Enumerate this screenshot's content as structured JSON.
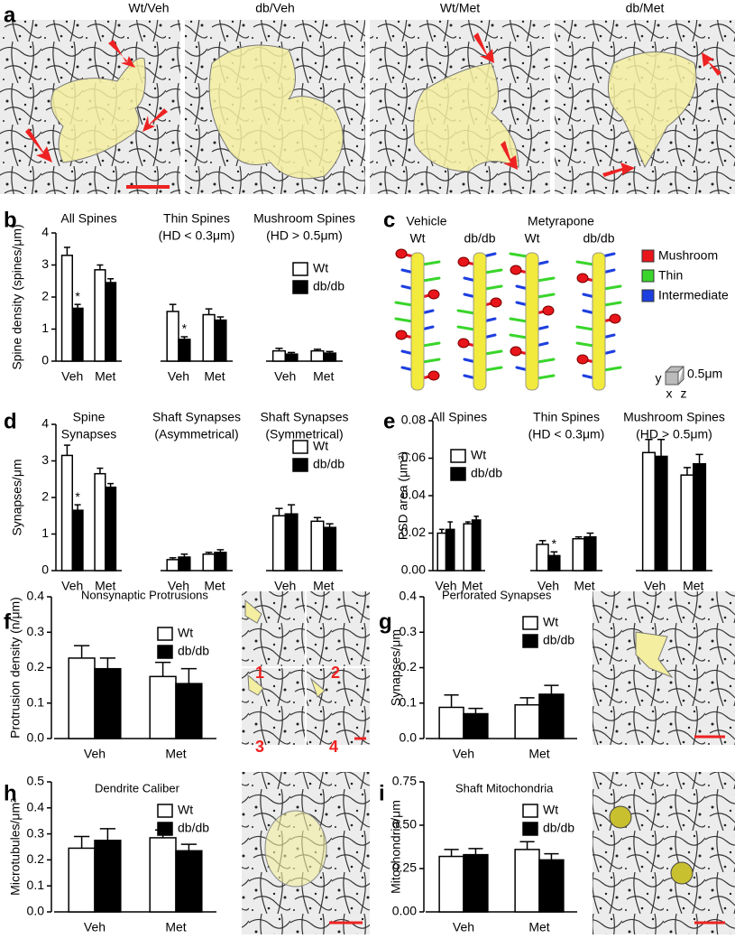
{
  "figure": {
    "panel_letters": [
      "a",
      "b",
      "c",
      "d",
      "e",
      "f",
      "g",
      "h",
      "i"
    ],
    "micrographs": [
      "Wt/Veh",
      "db/Veh",
      "Wt/Met",
      "db/Met"
    ],
    "tile_numbers": [
      "1",
      "2",
      "3",
      "4"
    ],
    "reconstruction": {
      "groups": [
        "Vehicle",
        "Metyrapone"
      ],
      "columns": [
        "Wt",
        "db/db",
        "Wt",
        "db/db"
      ],
      "legend": [
        {
          "name": "Mushroom",
          "color": "#e8151b"
        },
        {
          "name": "Thin",
          "color": "#39d52b"
        },
        {
          "name": "Intermediate",
          "color": "#1d3fe0"
        }
      ],
      "axes": [
        "y",
        "x",
        "z"
      ],
      "scale": "0.5μm"
    }
  },
  "chart_data": [
    {
      "type": "bar",
      "ylabel": "Spine density (spines/μm)",
      "ylim": [
        0,
        4
      ],
      "yticks": [
        0,
        1,
        2,
        3,
        4
      ],
      "series": [
        {
          "name": "Wt",
          "color": "#ffffff"
        },
        {
          "name": "db/db",
          "color": "#000000"
        }
      ],
      "subplots": [
        {
          "title": "All Spines",
          "categories": [
            "Veh",
            "Met"
          ],
          "values": [
            [
              3.3,
              2.85
            ],
            [
              1.65,
              2.45
            ]
          ],
          "errors": [
            [
              0.25,
              0.15
            ],
            [
              0.12,
              0.12
            ]
          ],
          "markers": [
            [
              null,
              null
            ],
            [
              "*",
              null
            ]
          ]
        },
        {
          "title": "Thin Spines",
          "subtitle": "(HD < 0.3μm)",
          "categories": [
            "Veh",
            "Met"
          ],
          "values": [
            [
              1.55,
              1.45
            ],
            [
              0.68,
              1.28
            ]
          ],
          "errors": [
            [
              0.22,
              0.18
            ],
            [
              0.08,
              0.1
            ]
          ],
          "markers": [
            [
              null,
              null
            ],
            [
              "*",
              null
            ]
          ]
        },
        {
          "title": "Mushroom Spines",
          "subtitle": "(HD > 0.5μm)",
          "categories": [
            "Veh",
            "Met"
          ],
          "values": [
            [
              0.32,
              0.32
            ],
            [
              0.22,
              0.25
            ]
          ],
          "errors": [
            [
              0.08,
              0.05
            ],
            [
              0.05,
              0.05
            ]
          ],
          "markers": [
            [
              null,
              null
            ],
            [
              null,
              null
            ]
          ]
        }
      ]
    },
    {
      "type": "bar",
      "ylabel": "Synapses/μm",
      "ylim": [
        0,
        4
      ],
      "yticks": [
        0,
        1,
        2,
        3,
        4
      ],
      "series": [
        {
          "name": "Wt",
          "color": "#ffffff"
        },
        {
          "name": "db/db",
          "color": "#000000"
        }
      ],
      "subplots": [
        {
          "title": "Spine",
          "subtitle": "Synapses",
          "categories": [
            "Veh",
            "Met"
          ],
          "values": [
            [
              3.15,
              2.65
            ],
            [
              1.65,
              2.28
            ]
          ],
          "errors": [
            [
              0.28,
              0.15
            ],
            [
              0.15,
              0.1
            ]
          ],
          "markers": [
            [
              null,
              null
            ],
            [
              "*",
              null
            ]
          ]
        },
        {
          "title": "Shaft Synapses",
          "subtitle": "(Asymmetrical)",
          "categories": [
            "Veh",
            "Met"
          ],
          "values": [
            [
              0.3,
              0.45
            ],
            [
              0.37,
              0.5
            ]
          ],
          "errors": [
            [
              0.05,
              0.05
            ],
            [
              0.08,
              0.07
            ]
          ],
          "markers": [
            [
              null,
              null
            ],
            [
              null,
              null
            ]
          ]
        },
        {
          "title": "Shaft Synapses",
          "subtitle": "(Symmetrical)",
          "categories": [
            "Veh",
            "Met"
          ],
          "values": [
            [
              1.5,
              1.35
            ],
            [
              1.55,
              1.18
            ]
          ],
          "errors": [
            [
              0.2,
              0.1
            ],
            [
              0.25,
              0.1
            ]
          ],
          "markers": [
            [
              null,
              null
            ],
            [
              null,
              null
            ]
          ]
        }
      ]
    },
    {
      "type": "bar",
      "ylabel": "PSD area (μm²)",
      "ylim": [
        0,
        0.08
      ],
      "yticks": [
        {
          "value": 0,
          "label": "0.00"
        },
        0.02,
        0.04,
        0.06,
        0.08
      ],
      "series": [
        {
          "name": "Wt",
          "color": "#ffffff"
        },
        {
          "name": "db/db",
          "color": "#000000"
        }
      ],
      "subplots": [
        {
          "title": "All Spines",
          "categories": [
            "Veh",
            "Met"
          ],
          "values": [
            [
              0.02,
              0.025
            ],
            [
              0.022,
              0.027
            ]
          ],
          "errors": [
            [
              0.002,
              0.001
            ],
            [
              0.004,
              0.002
            ]
          ],
          "markers": [
            [
              null,
              null
            ],
            [
              null,
              null
            ]
          ]
        },
        {
          "title": "Thin Spines",
          "subtitle": "(HD < 0.3μm)",
          "categories": [
            "Veh",
            "Met"
          ],
          "values": [
            [
              0.014,
              0.017
            ],
            [
              0.008,
              0.018
            ]
          ],
          "errors": [
            [
              0.002,
              0.001
            ],
            [
              0.002,
              0.002
            ]
          ],
          "markers": [
            [
              null,
              null
            ],
            [
              "*",
              null
            ]
          ]
        },
        {
          "title": "Mushroom Spines",
          "subtitle": "(HD > 0.5μm)",
          "categories": [
            "Veh",
            "Met"
          ],
          "values": [
            [
              0.063,
              0.051
            ],
            [
              0.061,
              0.057
            ]
          ],
          "errors": [
            [
              0.007,
              0.004
            ],
            [
              0.009,
              0.005
            ]
          ],
          "markers": [
            [
              null,
              null
            ],
            [
              null,
              null
            ]
          ]
        }
      ]
    },
    {
      "type": "bar",
      "title": "Nonsynaptic Protrusions",
      "ylabel": "Protrusion density (n/μm)",
      "ylim": [
        0,
        0.4
      ],
      "yticks": [
        {
          "value": 0,
          "label": "0.0"
        },
        0.1,
        0.2,
        0.3,
        0.4
      ],
      "series": [
        {
          "name": "Wt",
          "color": "#ffffff"
        },
        {
          "name": "db/db",
          "color": "#000000"
        }
      ],
      "subplots": [
        {
          "categories": [
            "Veh",
            "Met"
          ],
          "values": [
            [
              0.227,
              0.175
            ],
            [
              0.197,
              0.155
            ]
          ],
          "errors": [
            [
              0.035,
              0.04
            ],
            [
              0.03,
              0.042
            ]
          ]
        }
      ]
    },
    {
      "type": "bar",
      "title": "Perforated Synapses",
      "ylabel": "Synapses/μm",
      "ylim": [
        0,
        0.4
      ],
      "yticks": [
        {
          "value": 0,
          "label": "0.0"
        },
        0.1,
        0.2,
        0.3,
        0.4
      ],
      "series": [
        {
          "name": "Wt",
          "color": "#ffffff"
        },
        {
          "name": "db/db",
          "color": "#000000"
        }
      ],
      "subplots": [
        {
          "categories": [
            "Veh",
            "Met"
          ],
          "values": [
            [
              0.088,
              0.095
            ],
            [
              0.07,
              0.125
            ]
          ],
          "errors": [
            [
              0.035,
              0.02
            ],
            [
              0.015,
              0.025
            ]
          ]
        }
      ]
    },
    {
      "type": "bar",
      "title": "Dendrite Caliber",
      "ylabel": "Microtubules/μm²",
      "ylim": [
        0,
        0.5
      ],
      "yticks": [
        {
          "value": 0,
          "label": "0.0"
        },
        0.1,
        0.2,
        0.3,
        0.4,
        0.5
      ],
      "series": [
        {
          "name": "Wt",
          "color": "#ffffff"
        },
        {
          "name": "db/db",
          "color": "#000000"
        }
      ],
      "subplots": [
        {
          "categories": [
            "Veh",
            "Met"
          ],
          "values": [
            [
              0.245,
              0.285
            ],
            [
              0.275,
              0.235
            ]
          ],
          "errors": [
            [
              0.045,
              0.03
            ],
            [
              0.045,
              0.025
            ]
          ]
        }
      ]
    },
    {
      "type": "bar",
      "title": "Shaft Mitochondria",
      "ylabel": "Mitochondria/μm",
      "ylim": [
        0,
        0.75
      ],
      "yticks": [
        {
          "value": 0,
          "label": "0.00"
        },
        0.25,
        {
          "value": 0.5,
          "label": "0.50"
        },
        0.75
      ],
      "series": [
        {
          "name": "Wt",
          "color": "#ffffff"
        },
        {
          "name": "db/db",
          "color": "#000000"
        }
      ],
      "subplots": [
        {
          "categories": [
            "Veh",
            "Met"
          ],
          "values": [
            [
              0.32,
              0.36
            ],
            [
              0.33,
              0.3
            ]
          ],
          "errors": [
            [
              0.04,
              0.045
            ],
            [
              0.035,
              0.035
            ]
          ]
        }
      ]
    }
  ]
}
